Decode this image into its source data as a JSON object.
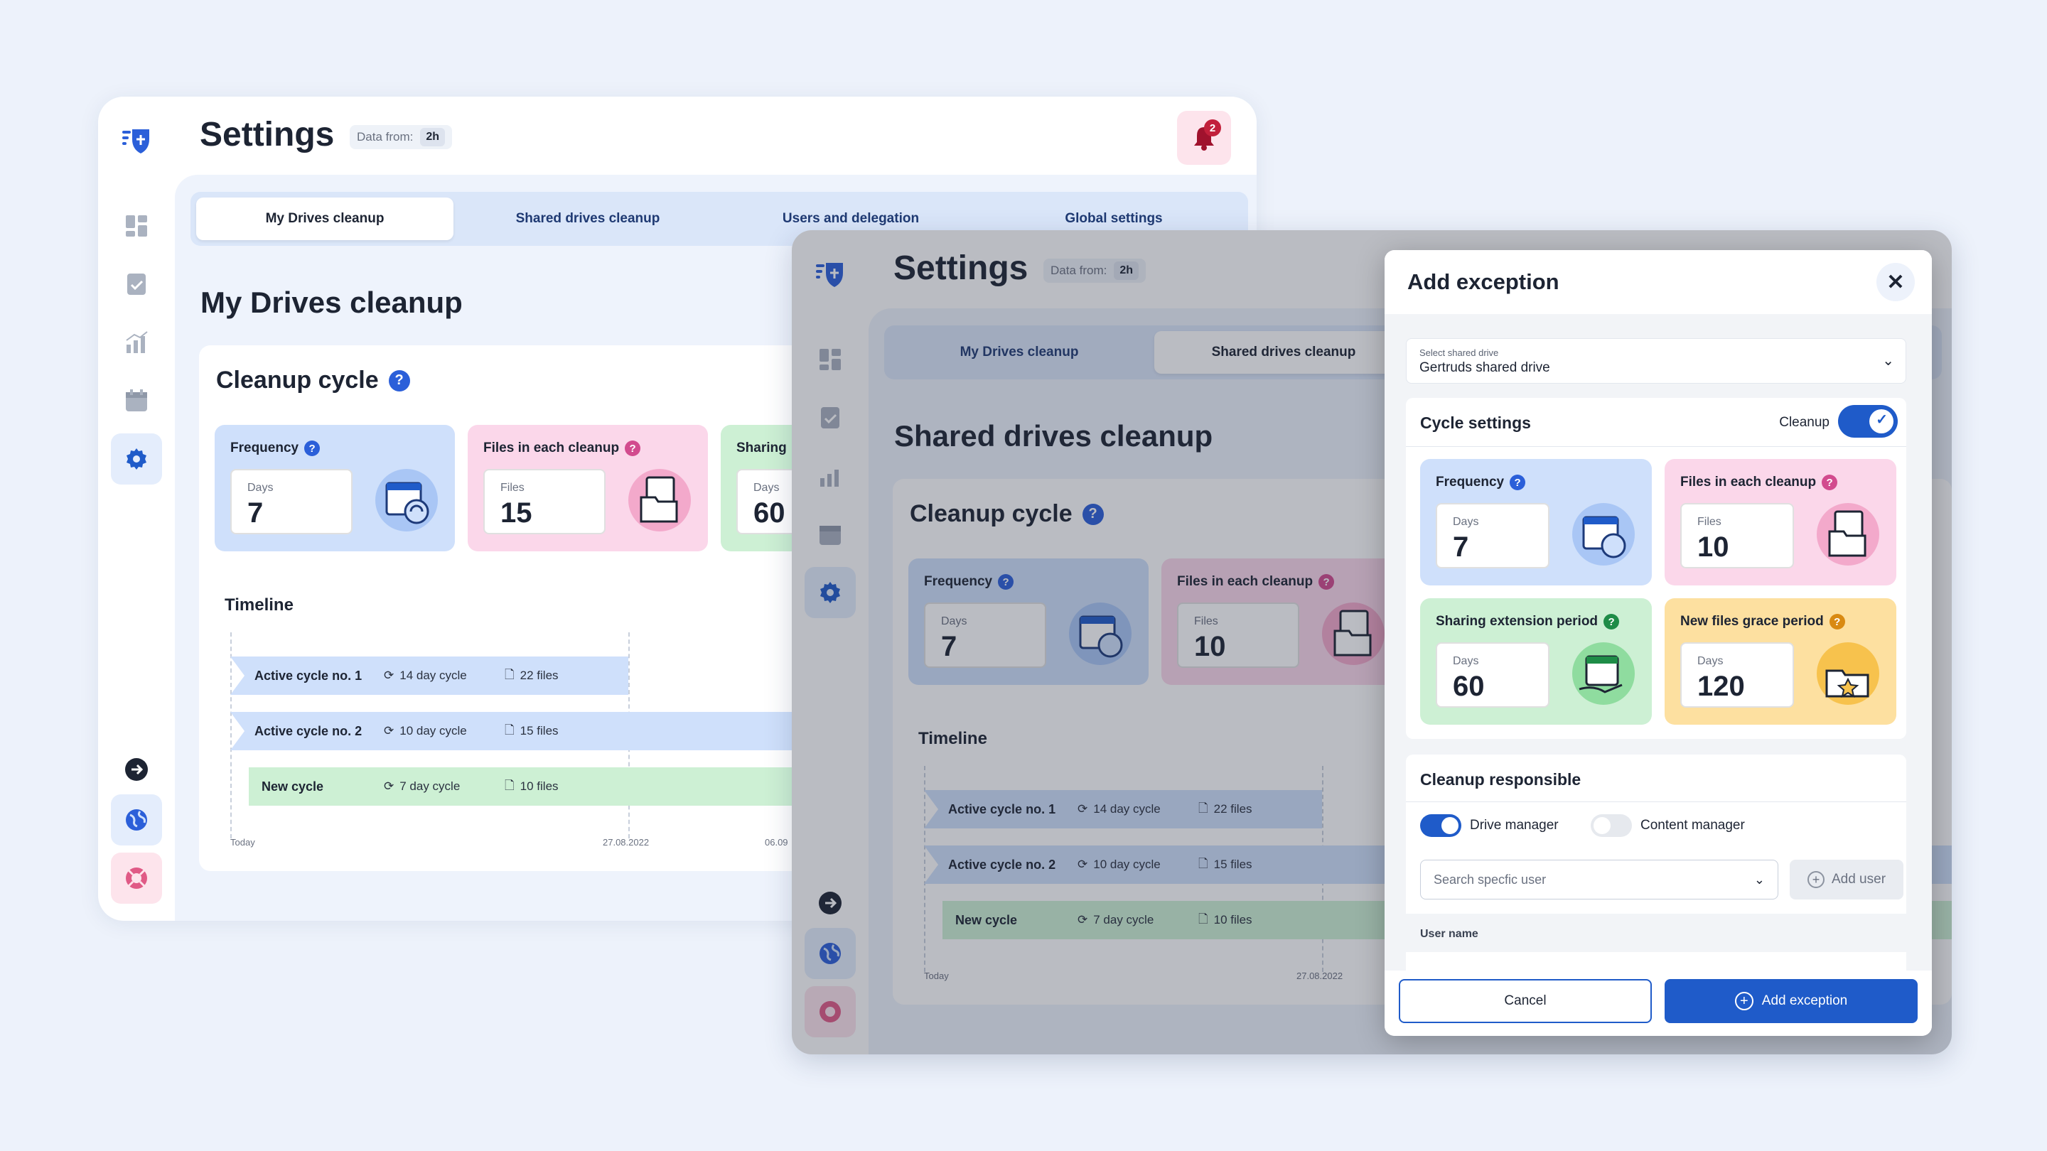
{
  "back": {
    "title": "Settings",
    "data_from_label": "Data from:",
    "data_from_value": "2h",
    "notification_count": "2",
    "tabs": [
      "My Drives cleanup",
      "Shared drives cleanup",
      "Users and delegation",
      "Global settings"
    ],
    "section_title": "My Drives cleanup",
    "cycle_title": "Cleanup cycle",
    "tiles": [
      {
        "label": "Frequency",
        "unit": "Days",
        "value": "7"
      },
      {
        "label": "Files in each cleanup",
        "unit": "Files",
        "value": "15"
      },
      {
        "label": "Sharing",
        "unit": "Days",
        "value": "60"
      }
    ],
    "timeline_title": "Timeline",
    "timeline": [
      {
        "name": "Active cycle no. 1",
        "cycle": "14 day cycle",
        "files": "22 files"
      },
      {
        "name": "Active cycle no. 2",
        "cycle": "10 day cycle",
        "files": "15 files"
      },
      {
        "name": "New cycle",
        "cycle": "7 day cycle",
        "files": "10 files"
      }
    ],
    "ticks": [
      "Today",
      "27.08.2022",
      "06.09"
    ]
  },
  "front": {
    "title": "Settings",
    "data_from_label": "Data from:",
    "data_from_value": "2h",
    "tabs": [
      "My Drives cleanup",
      "Shared drives cleanup"
    ],
    "section_title": "Shared drives cleanup",
    "cycle_title": "Cleanup cycle",
    "tiles": [
      {
        "label": "Frequency",
        "unit": "Days",
        "value": "7"
      },
      {
        "label": "Files in each cleanup",
        "unit": "Files",
        "value": "10"
      }
    ],
    "timeline_title": "Timeline",
    "timeline": [
      {
        "name": "Active cycle no. 1",
        "cycle": "14 day cycle",
        "files": "22 files"
      },
      {
        "name": "Active cycle no. 2",
        "cycle": "10 day cycle",
        "files": "15 files"
      },
      {
        "name": "New cycle",
        "cycle": "7 day cycle",
        "files": "10 files"
      }
    ],
    "ticks": [
      "Today",
      "27.08.2022"
    ]
  },
  "modal": {
    "title": "Add exception",
    "select_label": "Select shared drive",
    "select_value": "Gertruds shared drive",
    "cycle_settings": "Cycle settings",
    "cleanup_toggle_label": "Cleanup",
    "tiles": [
      {
        "label": "Frequency",
        "unit": "Days",
        "value": "7"
      },
      {
        "label": "Files in each cleanup",
        "unit": "Files",
        "value": "10"
      },
      {
        "label": "Sharing extension period",
        "unit": "Days",
        "value": "60"
      },
      {
        "label": "New files grace period",
        "unit": "Days",
        "value": "120"
      }
    ],
    "responsible_title": "Cleanup responsible",
    "drive_manager": "Drive manager",
    "content_manager": "Content manager",
    "search_placeholder": "Search specfic user",
    "add_user": "Add user",
    "user_name_header": "User name",
    "cancel": "Cancel",
    "add_exception": "Add exception"
  },
  "colors": {
    "blue_tile": "#cfe0fb",
    "pink_tile": "#fbd7ea",
    "green_tile": "#cdf0d4",
    "yellow_tile": "#fde0a0",
    "accent": "#1f5bc9"
  }
}
